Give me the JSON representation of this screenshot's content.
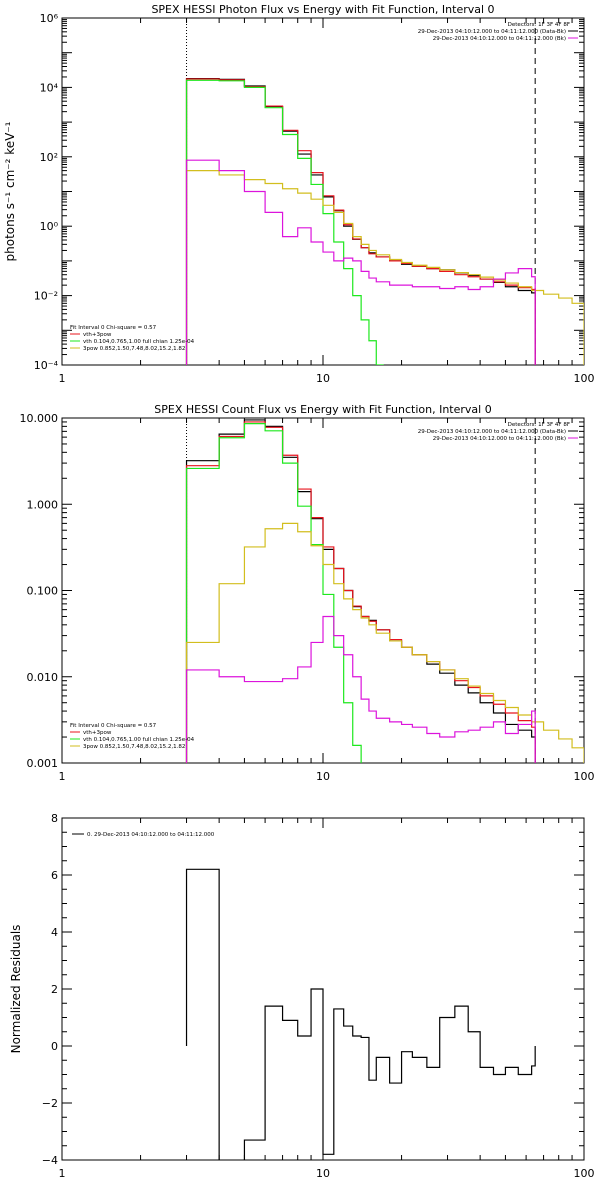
{
  "colors": {
    "black": "#000000",
    "red": "#e8141e",
    "green": "#1ee81e",
    "magenta": "#dc14dc",
    "yellow": "#d2be1e"
  },
  "chart_data": [
    {
      "type": "line",
      "title": "SPEX HESSI Photon Flux vs Energy with Fit Function, Interval 0",
      "xlabel": "",
      "ylabel": "photons s⁻¹ cm⁻² keV⁻¹",
      "x_scale": "log",
      "y_scale": "log",
      "xlim": [
        1,
        100
      ],
      "ylim": [
        0.0001,
        1000000
      ],
      "x_ticks": [
        1,
        10,
        100
      ],
      "x_tick_labels": [
        "1",
        "10",
        "100"
      ],
      "y_ticks": [
        0.0001,
        0.01,
        1,
        100,
        10000,
        1000000
      ],
      "y_tick_labels": [
        "10⁻⁴",
        "10⁻²",
        "10⁰",
        "10²",
        "10⁴",
        "10⁶"
      ],
      "vlines": [
        {
          "x": 3,
          "style": "dotted"
        },
        {
          "x": 65,
          "style": "dashed"
        }
      ],
      "legend_top": {
        "header": "Detectors: 1F 3F 4F 8F",
        "entries": [
          {
            "text": "29-Dec-2013 04:10:12.000 to 04:11:12.000 (Data-Bk)",
            "color": "#000000"
          },
          {
            "text": "29-Dec-2013 04:10:12.000 to 04:11:12.000 (Bk)",
            "color": "#dc14dc"
          }
        ]
      },
      "legend_bottom": {
        "header": "Fit Interval 0   Chi-square = 0.57",
        "entries": [
          {
            "text": "vth+3pow",
            "color": "#e8141e"
          },
          {
            "text": "vth 0.104,0.765,1.00  full chian 1.25e-04",
            "color": "#1ee81e"
          },
          {
            "text": "3pow 0.852,1.50,7.48,8.02,15.2,1.82",
            "color": "#d2be1e"
          }
        ]
      },
      "series": [
        {
          "color": "#000000",
          "edges": [
            3,
            4,
            5,
            6,
            7,
            8,
            9,
            10,
            11,
            12,
            13,
            14,
            15,
            16,
            18,
            20,
            22,
            25,
            28,
            32,
            36,
            40,
            45,
            50,
            56,
            63,
            65
          ],
          "values": [
            18000,
            17000,
            11000,
            2800,
            550,
            120,
            30,
            7.0,
            2.8,
            1.0,
            0.42,
            0.24,
            0.17,
            0.13,
            0.1,
            0.08,
            0.07,
            0.06,
            0.055,
            0.045,
            0.038,
            0.03,
            0.024,
            0.018,
            0.014,
            0.012
          ]
        },
        {
          "color": "#e8141e",
          "edges": [
            3,
            4,
            5,
            6,
            7,
            8,
            9,
            10,
            11,
            12,
            13,
            14,
            15,
            16,
            18,
            20,
            22,
            25,
            28,
            32,
            36,
            40,
            45,
            50,
            56,
            63,
            65
          ],
          "values": [
            17500,
            16500,
            10500,
            2900,
            580,
            150,
            35,
            7.5,
            2.9,
            1.1,
            0.43,
            0.24,
            0.16,
            0.13,
            0.1,
            0.085,
            0.07,
            0.06,
            0.05,
            0.04,
            0.035,
            0.03,
            0.025,
            0.02,
            0.017,
            0.015
          ]
        },
        {
          "color": "#1ee81e",
          "edges": [
            3,
            4,
            5,
            6,
            7,
            8,
            9,
            10,
            11,
            12,
            13,
            14,
            15,
            16,
            17
          ],
          "values": [
            16000,
            15500,
            10000,
            2600,
            440,
            90,
            16,
            2.3,
            0.35,
            0.06,
            0.01,
            0.002,
            0.0005,
            0.0001
          ]
        },
        {
          "color": "#d2be1e",
          "edges": [
            3,
            4,
            5,
            6,
            7,
            8,
            9,
            10,
            11,
            12,
            13,
            14,
            15,
            16,
            18,
            20,
            22,
            25,
            28,
            32,
            36,
            40,
            45,
            50,
            56,
            63,
            70,
            80,
            90,
            100
          ],
          "values": [
            40,
            30,
            22,
            17,
            12,
            9,
            6,
            4,
            2.5,
            1.2,
            0.5,
            0.3,
            0.2,
            0.15,
            0.11,
            0.09,
            0.075,
            0.065,
            0.055,
            0.046,
            0.04,
            0.034,
            0.028,
            0.023,
            0.018,
            0.014,
            0.011,
            0.0085,
            0.006
          ]
        },
        {
          "color": "#dc14dc",
          "edges": [
            3,
            4,
            5,
            6,
            7,
            8,
            9,
            10,
            11,
            12,
            13,
            14,
            15,
            16,
            18,
            20,
            22,
            25,
            28,
            32,
            36,
            40,
            45,
            50,
            56,
            63,
            65
          ],
          "values": [
            80,
            40,
            10,
            2.5,
            0.5,
            0.9,
            0.35,
            0.18,
            0.1,
            0.12,
            0.1,
            0.05,
            0.032,
            0.025,
            0.02,
            0.02,
            0.018,
            0.018,
            0.016,
            0.018,
            0.015,
            0.018,
            0.03,
            0.045,
            0.06,
            0.035
          ]
        }
      ]
    },
    {
      "type": "line",
      "title": "SPEX HESSI Count Flux vs Energy with Fit Function, Interval 0",
      "xlabel": "",
      "ylabel": "",
      "x_scale": "log",
      "y_scale": "log",
      "xlim": [
        1,
        100
      ],
      "ylim": [
        0.001,
        10
      ],
      "x_ticks": [
        1,
        10,
        100
      ],
      "x_tick_labels": [
        "1",
        "10",
        "100"
      ],
      "y_ticks": [
        0.001,
        0.01,
        0.1,
        1,
        10
      ],
      "y_tick_labels": [
        "0.001",
        "0.010",
        "0.100",
        "1.000",
        "10.000"
      ],
      "vlines": [
        {
          "x": 3,
          "style": "dotted"
        },
        {
          "x": 65,
          "style": "dashed"
        }
      ],
      "legend_top": {
        "header": "Detectors: 1F 3F 4F 8F",
        "entries": [
          {
            "text": "29-Dec-2013 04:10:12.000 to 04:11:12.000 (Data-Bk)",
            "color": "#000000"
          },
          {
            "text": "29-Dec-2013 04:10:12.000 to 04:11:12.000 (Bk)",
            "color": "#dc14dc"
          }
        ]
      },
      "legend_bottom": {
        "header": "Fit Interval 0   Chi-square = 0.57",
        "entries": [
          {
            "text": "vth+3pow",
            "color": "#e8141e"
          },
          {
            "text": "vth 0.104,0.765,1.00  full chian 1.25e-04",
            "color": "#1ee81e"
          },
          {
            "text": "3pow 0.852,1.50,7.48,8.02,15.2,1.82",
            "color": "#d2be1e"
          }
        ]
      },
      "series": [
        {
          "color": "#000000",
          "edges": [
            3,
            4,
            5,
            6,
            7,
            8,
            9,
            10,
            11,
            12,
            13,
            14,
            15,
            16,
            18,
            20,
            22,
            25,
            28,
            32,
            36,
            40,
            45,
            50,
            56,
            63,
            65
          ],
          "values": [
            3.2,
            6.5,
            9.5,
            8.0,
            3.5,
            1.4,
            0.68,
            0.3,
            0.18,
            0.1,
            0.065,
            0.05,
            0.045,
            0.035,
            0.026,
            0.022,
            0.018,
            0.014,
            0.011,
            0.008,
            0.0065,
            0.005,
            0.0038,
            0.0028,
            0.0024,
            0.002
          ]
        },
        {
          "color": "#e8141e",
          "edges": [
            3,
            4,
            5,
            6,
            7,
            8,
            9,
            10,
            11,
            12,
            13,
            14,
            15,
            16,
            18,
            20,
            22,
            25,
            28,
            32,
            36,
            40,
            45,
            50,
            56,
            63,
            65
          ],
          "values": [
            2.8,
            6.1,
            9.0,
            7.8,
            3.7,
            1.5,
            0.7,
            0.32,
            0.18,
            0.1,
            0.066,
            0.05,
            0.044,
            0.035,
            0.027,
            0.022,
            0.018,
            0.015,
            0.012,
            0.009,
            0.0075,
            0.006,
            0.0048,
            0.0038,
            0.0031,
            0.0026
          ]
        },
        {
          "color": "#1ee81e",
          "edges": [
            3,
            4,
            5,
            6,
            7,
            8,
            9,
            10,
            11,
            12,
            13,
            14,
            15
          ],
          "values": [
            2.6,
            5.9,
            8.6,
            7.1,
            3.0,
            0.95,
            0.34,
            0.09,
            0.022,
            0.005,
            0.0016,
            0.0007
          ]
        },
        {
          "color": "#d2be1e",
          "edges": [
            3,
            4,
            5,
            6,
            7,
            8,
            9,
            10,
            11,
            12,
            13,
            14,
            15,
            16,
            18,
            20,
            22,
            25,
            28,
            32,
            36,
            40,
            45,
            50,
            56,
            63,
            70,
            80,
            90,
            100
          ],
          "values": [
            0.025,
            0.12,
            0.32,
            0.52,
            0.6,
            0.48,
            0.33,
            0.2,
            0.12,
            0.08,
            0.06,
            0.048,
            0.04,
            0.032,
            0.026,
            0.022,
            0.018,
            0.015,
            0.012,
            0.0095,
            0.0078,
            0.0064,
            0.0053,
            0.0044,
            0.0036,
            0.003,
            0.0024,
            0.0019,
            0.0015
          ]
        },
        {
          "color": "#dc14dc",
          "edges": [
            3,
            4,
            5,
            6,
            7,
            8,
            9,
            10,
            11,
            12,
            13,
            14,
            15,
            16,
            18,
            20,
            22,
            25,
            28,
            32,
            36,
            40,
            45,
            50,
            56,
            63,
            65
          ],
          "values": [
            0.012,
            0.01,
            0.0088,
            0.0088,
            0.0095,
            0.013,
            0.025,
            0.05,
            0.03,
            0.018,
            0.01,
            0.0055,
            0.004,
            0.0033,
            0.003,
            0.0028,
            0.0026,
            0.0022,
            0.002,
            0.0023,
            0.0024,
            0.0026,
            0.003,
            0.0022,
            0.0028,
            0.004
          ]
        }
      ]
    },
    {
      "type": "line",
      "title": "",
      "xlabel": "",
      "ylabel": "Normalized Residuals",
      "x_scale": "log",
      "y_scale": "linear",
      "xlim": [
        1,
        100
      ],
      "ylim": [
        -4,
        8
      ],
      "x_ticks": [
        1,
        10,
        100
      ],
      "x_tick_labels": [
        "1",
        "10",
        "100"
      ],
      "y_ticks": [
        -4,
        -2,
        0,
        2,
        4,
        6,
        8
      ],
      "y_tick_labels": [
        "−4",
        "−2",
        "0",
        "2",
        "4",
        "6",
        "8"
      ],
      "legend_top": {
        "header": "",
        "entries": [
          {
            "text": "0. 29-Dec-2013 04:10:12.000 to 04:11:12.000",
            "color": "#000000"
          }
        ]
      },
      "series": [
        {
          "color": "#000000",
          "edges": [
            3,
            4,
            5,
            6,
            7,
            8,
            9,
            10,
            11,
            12,
            13,
            14,
            15,
            16,
            18,
            20,
            22,
            25,
            28,
            32,
            36,
            40,
            45,
            50,
            56,
            63,
            65
          ],
          "values": [
            6.2,
            -4.1,
            -3.3,
            1.4,
            0.9,
            0.35,
            2.0,
            -3.8,
            1.3,
            0.7,
            0.35,
            0.3,
            -1.2,
            -0.4,
            -1.3,
            -0.2,
            -0.4,
            -0.75,
            1.0,
            1.4,
            0.5,
            -0.75,
            -1.0,
            -0.75,
            -1.0,
            -0.7
          ]
        }
      ]
    }
  ]
}
